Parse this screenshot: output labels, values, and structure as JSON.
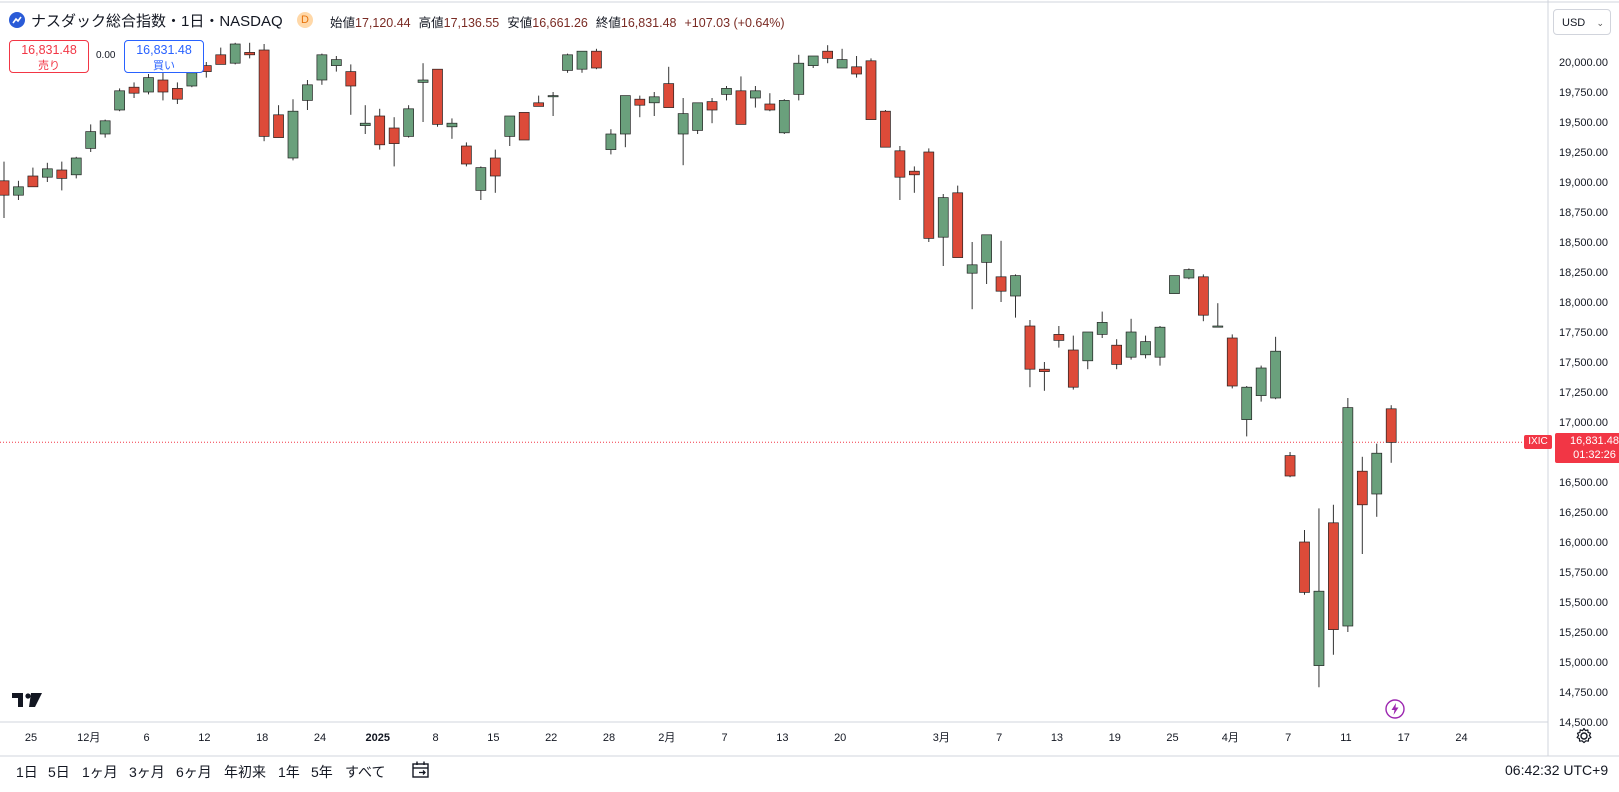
{
  "header": {
    "symbol_title": "ナスダック総合指数・1日・NASDAQ",
    "data_badge": "D",
    "open_label": "始値",
    "open_value": "17,120.44",
    "high_label": "高値",
    "high_value": "17,136.55",
    "low_label": "安値",
    "low_value": "16,661.26",
    "close_label": "終値",
    "close_value": "16,831.48",
    "change": "+107.03 (+0.64%)"
  },
  "trade": {
    "sell_price": "16,831.48",
    "sell_label": "売り",
    "spread": "0.00",
    "buy_price": "16,831.48",
    "buy_label": "買い"
  },
  "currency_selector": "USD",
  "price_tag": {
    "symbol": "IXIC",
    "price": "16,831.48",
    "countdown": "01:32:26"
  },
  "timeframes": [
    "1日",
    "5日",
    "1ヶ月",
    "3ヶ月",
    "6ヶ月",
    "年初来",
    "1年",
    "5年",
    "すべて"
  ],
  "clock": "06:42:32 UTC+9",
  "colors": {
    "up": "#6aa07c",
    "down": "#dd4b39",
    "wick": "#333333",
    "last_price": "#f23645",
    "grid_text": "#131722"
  },
  "chart_data": {
    "type": "candlestick",
    "y_axis": {
      "min": 14500,
      "max": 20150,
      "ticks": [
        14500,
        14750,
        15000,
        15250,
        15500,
        15750,
        16000,
        16250,
        16500,
        16750,
        17000,
        17250,
        17500,
        17750,
        18000,
        18250,
        18500,
        18750,
        19000,
        19250,
        19500,
        19750,
        20000
      ],
      "tick_labels": [
        "14,500.00",
        "14,750.00",
        "15,000.00",
        "15,250.00",
        "15,500.00",
        "15,750.00",
        "16,000.00",
        "16,250.00",
        "16,500.00",
        "16,750.00",
        "17,000.00",
        "17,250.00",
        "17,500.00",
        "17,750.00",
        "18,000.00",
        "18,250.00",
        "18,500.00",
        "18,750.00",
        "19,000.00",
        "19,250.00",
        "19,500.00",
        "19,750.00",
        "20,000.00"
      ]
    },
    "x_axis": {
      "labels": [
        "25",
        "12月",
        "6",
        "12",
        "18",
        "24",
        "2025",
        "8",
        "15",
        "22",
        "28",
        "2月",
        "7",
        "13",
        "20",
        "3月",
        "7",
        "13",
        "19",
        "25",
        "4月",
        "7",
        "11",
        "17",
        "24"
      ],
      "label_bar_index": [
        0,
        4,
        8,
        12,
        16,
        20,
        24,
        28,
        32,
        36,
        40,
        44,
        48,
        52,
        56,
        63,
        67,
        71,
        75,
        79,
        83,
        87,
        91,
        95,
        99
      ]
    },
    "last_price": 16831.48,
    "candles": [
      [
        19010,
        19170,
        18700,
        18890
      ],
      [
        18890,
        19010,
        18850,
        18960
      ],
      [
        19050,
        19120,
        18980,
        18960
      ],
      [
        19040,
        19160,
        19000,
        19110
      ],
      [
        19100,
        19170,
        18930,
        19030
      ],
      [
        19060,
        19210,
        19030,
        19200
      ],
      [
        19280,
        19480,
        19250,
        19420
      ],
      [
        19400,
        19520,
        19370,
        19510
      ],
      [
        19600,
        19780,
        19590,
        19760
      ],
      [
        19790,
        19830,
        19700,
        19740
      ],
      [
        19750,
        19900,
        19730,
        19870
      ],
      [
        19850,
        19910,
        19680,
        19750
      ],
      [
        19780,
        19830,
        19650,
        19690
      ],
      [
        19800,
        19950,
        19790,
        19910
      ],
      [
        19970,
        20000,
        19870,
        19920
      ],
      [
        20060,
        20120,
        19980,
        19980
      ],
      [
        19990,
        20160,
        19980,
        20150
      ],
      [
        20080,
        20160,
        20030,
        20060
      ],
      [
        20100,
        20150,
        19340,
        19380
      ],
      [
        19560,
        19640,
        19370,
        19370
      ],
      [
        19200,
        19690,
        19180,
        19590
      ],
      [
        19680,
        19850,
        19600,
        19810
      ],
      [
        19850,
        20070,
        19810,
        20060
      ],
      [
        19970,
        20050,
        19920,
        20020
      ],
      [
        19920,
        19980,
        19560,
        19800
      ],
      [
        19470,
        19640,
        19400,
        19490
      ],
      [
        19550,
        19610,
        19270,
        19310
      ],
      [
        19450,
        19540,
        19130,
        19320
      ],
      [
        19380,
        19640,
        19370,
        19610
      ],
      [
        19830,
        19990,
        19500,
        19850
      ],
      [
        19940,
        19940,
        19460,
        19480
      ],
      [
        19460,
        19530,
        19360,
        19490
      ],
      [
        19300,
        19330,
        19130,
        19150
      ],
      [
        18930,
        19130,
        18850,
        19120
      ],
      [
        19200,
        19270,
        18910,
        19050
      ],
      [
        19380,
        19530,
        19300,
        19550
      ],
      [
        19580,
        19570,
        19350,
        19350
      ],
      [
        19660,
        19720,
        19640,
        19630
      ],
      [
        19710,
        19750,
        19550,
        19720
      ],
      [
        19930,
        20070,
        19910,
        20060
      ],
      [
        19940,
        20070,
        19910,
        20090
      ],
      [
        20090,
        20110,
        19940,
        19950
      ],
      [
        19270,
        19440,
        19230,
        19400
      ],
      [
        19400,
        19680,
        19290,
        19720
      ],
      [
        19690,
        19720,
        19540,
        19640
      ],
      [
        19660,
        19750,
        19550,
        19710
      ],
      [
        19820,
        19960,
        19620,
        19620
      ],
      [
        19400,
        19700,
        19140,
        19570
      ],
      [
        19430,
        19660,
        19400,
        19660
      ],
      [
        19670,
        19700,
        19490,
        19600
      ],
      [
        19730,
        19800,
        19680,
        19780
      ],
      [
        19760,
        19880,
        19480,
        19480
      ],
      [
        19700,
        19800,
        19620,
        19760
      ],
      [
        19650,
        19740,
        19590,
        19600
      ],
      [
        19410,
        19690,
        19400,
        19680
      ],
      [
        19730,
        20060,
        19680,
        19990
      ],
      [
        19970,
        20040,
        19950,
        20050
      ],
      [
        20090,
        20140,
        19990,
        20030
      ],
      [
        19950,
        20110,
        19980,
        20020
      ],
      [
        19960,
        20050,
        19870,
        19900
      ],
      [
        20010,
        20030,
        19520,
        19520
      ],
      [
        19590,
        19600,
        19300,
        19290
      ],
      [
        19260,
        19300,
        18850,
        19040
      ],
      [
        19090,
        19130,
        18910,
        19060
      ],
      [
        19250,
        19280,
        18500,
        18530
      ],
      [
        18540,
        18900,
        18300,
        18870
      ],
      [
        18910,
        18970,
        18380,
        18370
      ],
      [
        18240,
        18500,
        17940,
        18310
      ],
      [
        18330,
        18540,
        18150,
        18560
      ],
      [
        18210,
        18510,
        18000,
        18090
      ],
      [
        18050,
        18230,
        17870,
        18220
      ],
      [
        17800,
        17850,
        17290,
        17440
      ],
      [
        17440,
        17500,
        17260,
        17420
      ],
      [
        17730,
        17800,
        17620,
        17680
      ],
      [
        17600,
        17720,
        17270,
        17290
      ],
      [
        17510,
        17750,
        17440,
        17750
      ],
      [
        17730,
        17920,
        17700,
        17830
      ],
      [
        17640,
        17690,
        17440,
        17480
      ],
      [
        17540,
        17860,
        17520,
        17750
      ],
      [
        17560,
        17720,
        17530,
        17670
      ],
      [
        17540,
        17800,
        17470,
        17790
      ],
      [
        18070,
        18220,
        18070,
        18220
      ],
      [
        18200,
        18280,
        18190,
        18270
      ],
      [
        18210,
        18230,
        17840,
        17890
      ],
      [
        17800,
        17990,
        17790,
        17800
      ],
      [
        17700,
        17730,
        17280,
        17300
      ],
      [
        17020,
        17300,
        16880,
        17290
      ],
      [
        17220,
        17470,
        17170,
        17450
      ],
      [
        17200,
        17710,
        17190,
        17590
      ],
      [
        16720,
        16750,
        16540,
        16550
      ],
      [
        16000,
        16100,
        15560,
        15580
      ],
      [
        14970,
        16280,
        14790,
        15590
      ],
      [
        16160,
        16310,
        15060,
        15270
      ],
      [
        15300,
        17200,
        15250,
        17120
      ],
      [
        16590,
        16710,
        15900,
        16310
      ],
      [
        16400,
        16820,
        16210,
        16740
      ],
      [
        17110,
        17140,
        16660,
        16830
      ]
    ]
  }
}
